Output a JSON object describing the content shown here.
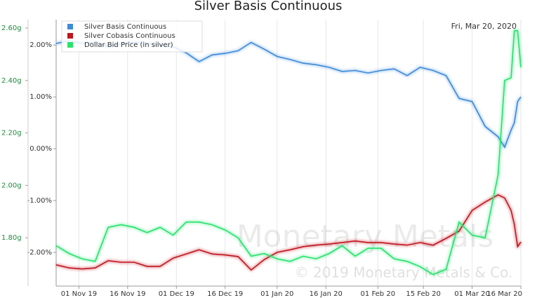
{
  "chart_data": {
    "type": "line",
    "title": "Silver Basis Continuous",
    "annotation": "Fri, Mar 20, 2020",
    "watermark": "Monetary Metals",
    "watermark_copyright": "© 2019 Monetary Metals & Co.",
    "x": [
      "2019-10-25",
      "2019-10-29",
      "2019-11-02",
      "2019-11-06",
      "2019-11-10",
      "2019-11-14",
      "2019-11-18",
      "2019-11-22",
      "2019-11-26",
      "2019-11-30",
      "2019-12-04",
      "2019-12-08",
      "2019-12-12",
      "2019-12-16",
      "2019-12-20",
      "2019-12-24",
      "2019-12-28",
      "2020-01-01",
      "2020-01-05",
      "2020-01-09",
      "2020-01-13",
      "2020-01-17",
      "2020-01-21",
      "2020-01-25",
      "2020-01-29",
      "2020-02-02",
      "2020-02-06",
      "2020-02-10",
      "2020-02-14",
      "2020-02-18",
      "2020-02-22",
      "2020-02-26",
      "2020-03-01",
      "2020-03-05",
      "2020-03-09",
      "2020-03-11",
      "2020-03-13",
      "2020-03-14",
      "2020-03-15",
      "2020-03-16"
    ],
    "xlim": [
      "2019-10-25",
      "2020-03-16"
    ],
    "xticks": [
      {
        "value": "2019-11-01",
        "label": "01 Nov 19"
      },
      {
        "value": "2019-11-16",
        "label": "16 Nov 19"
      },
      {
        "value": "2019-12-01",
        "label": "01 Dec 19"
      },
      {
        "value": "2019-12-16",
        "label": "16 Dec 19"
      },
      {
        "value": "2020-01-01",
        "label": "01 Jan 20"
      },
      {
        "value": "2020-01-16",
        "label": "16 Jan 20"
      },
      {
        "value": "2020-02-01",
        "label": "01 Feb 20"
      },
      {
        "value": "2020-02-15",
        "label": "15 Feb 20"
      },
      {
        "value": "2020-03-01",
        "label": "01 Mar 20"
      },
      {
        "value": "2020-03-16",
        "label": "16 Mar 20"
      }
    ],
    "ylim": [
      -2.65,
      2.49
    ],
    "yticks": [
      {
        "value": 2,
        "label": "2.00%"
      },
      {
        "value": 1,
        "label": "1.00%"
      },
      {
        "value": 0,
        "label": "0.00%"
      },
      {
        "value": -1,
        "label": "-1.00%"
      },
      {
        "value": -2,
        "label": "-2.00%"
      }
    ],
    "y2lim": [
      1.616,
      2.632
    ],
    "y2ticks": [
      {
        "value": 2.6,
        "label": "2.60g"
      },
      {
        "value": 2.4,
        "label": "2.40g"
      },
      {
        "value": 2.2,
        "label": "2.20g"
      },
      {
        "value": 2.0,
        "label": "2.00g"
      },
      {
        "value": 1.8,
        "label": "1.80g"
      }
    ],
    "grid": true,
    "legend": "top-left",
    "series": [
      {
        "name": "Silver Basis Continuous",
        "color": "#3d8ad9",
        "values": [
          2.03,
          2.08,
          2.03,
          2.05,
          1.97,
          2.03,
          2.05,
          2.03,
          2.0,
          1.97,
          1.85,
          1.68,
          1.81,
          1.84,
          1.89,
          2.05,
          1.92,
          1.78,
          1.72,
          1.65,
          1.62,
          1.57,
          1.49,
          1.51,
          1.46,
          1.51,
          1.54,
          1.41,
          1.57,
          1.51,
          1.41,
          0.97,
          0.91,
          0.43,
          0.23,
          0.03,
          0.36,
          0.5,
          0.91,
          1.0
        ]
      },
      {
        "name": "Silver Cobasis Continuous",
        "color": "#c0161c",
        "values": [
          -2.24,
          -2.3,
          -2.32,
          -2.3,
          -2.16,
          -2.19,
          -2.19,
          -2.27,
          -2.27,
          -2.11,
          -2.03,
          -1.95,
          -2.03,
          -2.05,
          -2.08,
          -2.34,
          -2.14,
          -2.0,
          -1.95,
          -1.89,
          -1.86,
          -1.84,
          -1.81,
          -1.78,
          -1.81,
          -1.81,
          -1.84,
          -1.86,
          -1.81,
          -1.86,
          -1.73,
          -1.59,
          -1.19,
          -1.03,
          -0.89,
          -0.95,
          -1.19,
          -1.46,
          -1.89,
          -1.8
        ]
      },
      {
        "name": "Dollar Bid Price (in silver)",
        "color": "#27e36c",
        "axis": "y2",
        "values": [
          1.77,
          1.74,
          1.72,
          1.71,
          1.84,
          1.85,
          1.84,
          1.82,
          1.84,
          1.81,
          1.86,
          1.86,
          1.85,
          1.83,
          1.8,
          1.73,
          1.74,
          1.72,
          1.71,
          1.73,
          1.72,
          1.74,
          1.77,
          1.73,
          1.76,
          1.76,
          1.72,
          1.71,
          1.69,
          1.66,
          1.68,
          1.86,
          1.81,
          1.8,
          2.04,
          2.4,
          2.41,
          2.59,
          2.59,
          2.45
        ]
      }
    ]
  }
}
